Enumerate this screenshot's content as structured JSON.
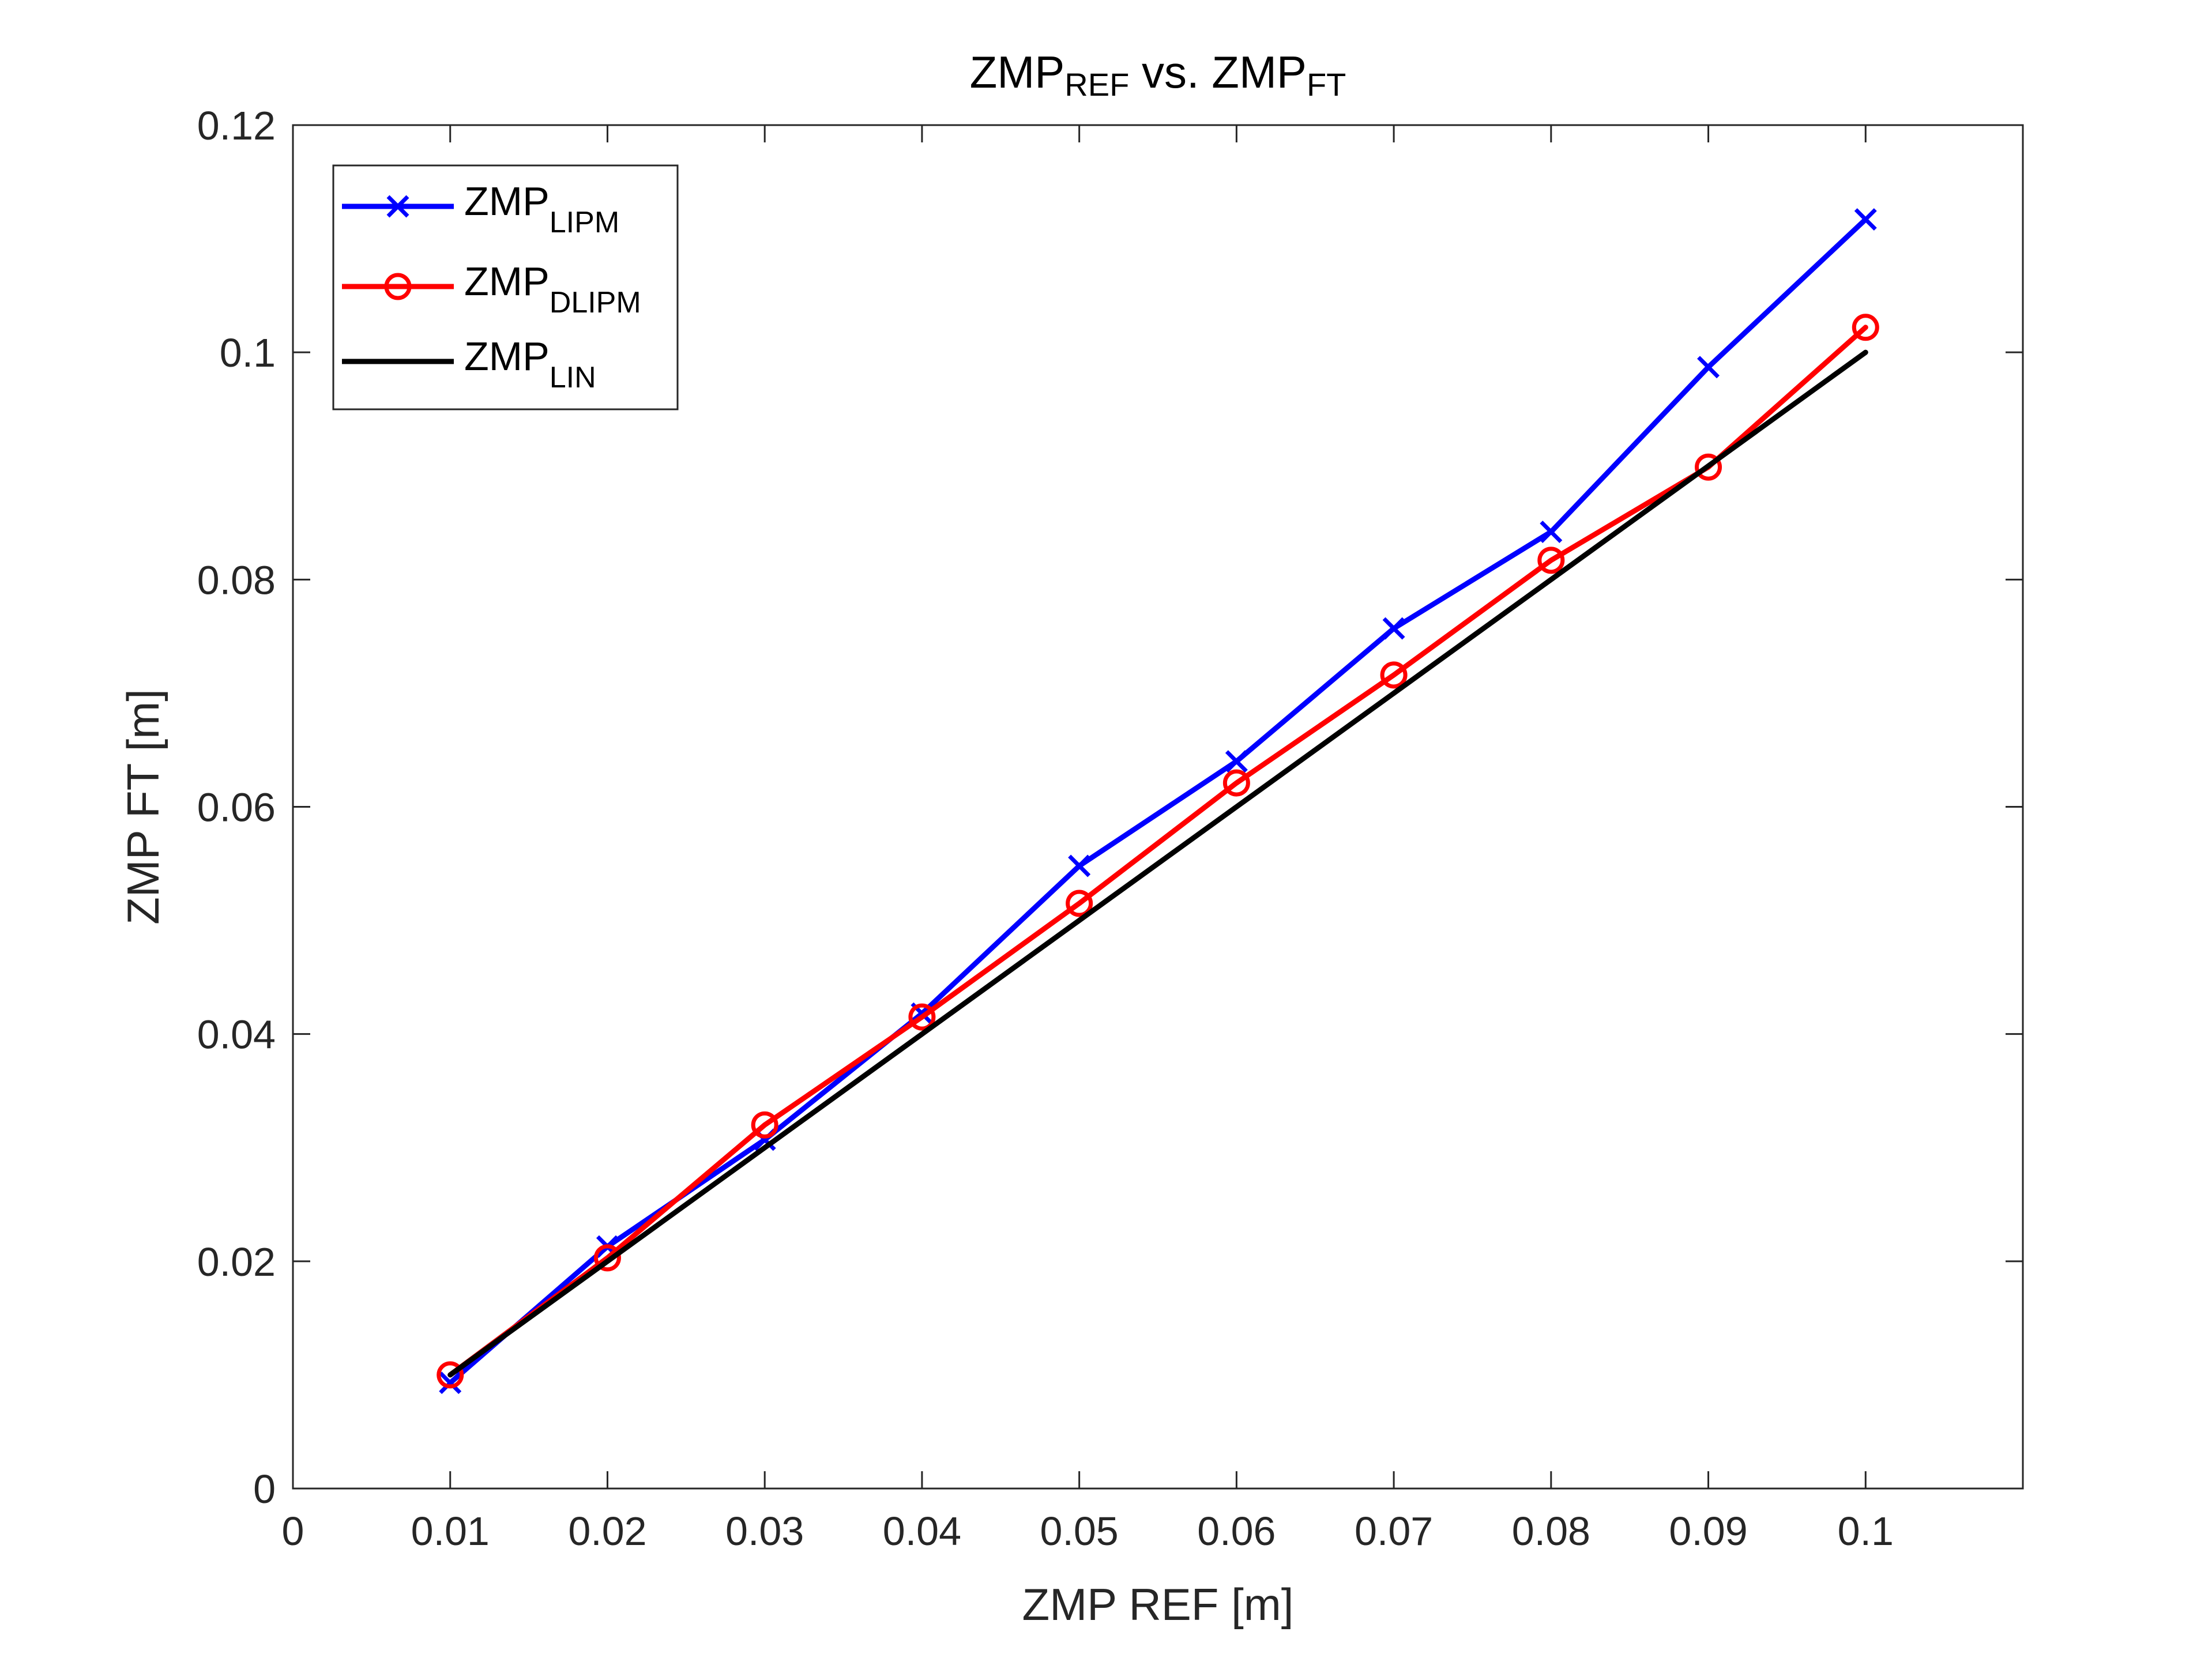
{
  "chart_data": {
    "type": "line",
    "title": {
      "base1": "ZMP",
      "sub1": "REF",
      "mid": " vs. ",
      "base2": "ZMP",
      "sub2": "FT"
    },
    "xlabel": "ZMP REF [m]",
    "ylabel": "ZMP FT [m]",
    "xlim": [
      0,
      0.11
    ],
    "ylim": [
      0,
      0.12
    ],
    "xticks": [
      "0",
      "0.01",
      "0.02",
      "0.03",
      "0.04",
      "0.05",
      "0.06",
      "0.07",
      "0.08",
      "0.09",
      "0.1"
    ],
    "xtick_values": [
      0,
      0.01,
      0.02,
      0.03,
      0.04,
      0.05,
      0.06,
      0.07,
      0.08,
      0.09,
      0.1
    ],
    "yticks": [
      "0",
      "0.02",
      "0.04",
      "0.06",
      "0.08",
      "0.1",
      "0.12"
    ],
    "ytick_values": [
      0,
      0.02,
      0.04,
      0.06,
      0.08,
      0.1,
      0.12
    ],
    "grid": false,
    "legend_position": "top-left",
    "x": [
      0.01,
      0.02,
      0.03,
      0.04,
      0.05,
      0.06,
      0.07,
      0.08,
      0.09,
      0.1
    ],
    "series": [
      {
        "name": "ZMP",
        "name_sub": "LIPM",
        "color": "#0000ff",
        "marker": "x",
        "values": [
          0.0093,
          0.0213,
          0.0307,
          0.0418,
          0.0548,
          0.064,
          0.0757,
          0.0842,
          0.0987,
          0.1117
        ]
      },
      {
        "name": "ZMP",
        "name_sub": "DLIPM",
        "color": "#ff0000",
        "marker": "o",
        "values": [
          0.01,
          0.0203,
          0.032,
          0.0415,
          0.0515,
          0.0621,
          0.0716,
          0.0817,
          0.0899,
          0.1022
        ]
      },
      {
        "name": "ZMP",
        "name_sub": "LIN",
        "color": "#000000",
        "marker": "none",
        "values": [
          0.01,
          0.02,
          0.03,
          0.04,
          0.05,
          0.06,
          0.07,
          0.08,
          0.09,
          0.1
        ]
      }
    ]
  }
}
